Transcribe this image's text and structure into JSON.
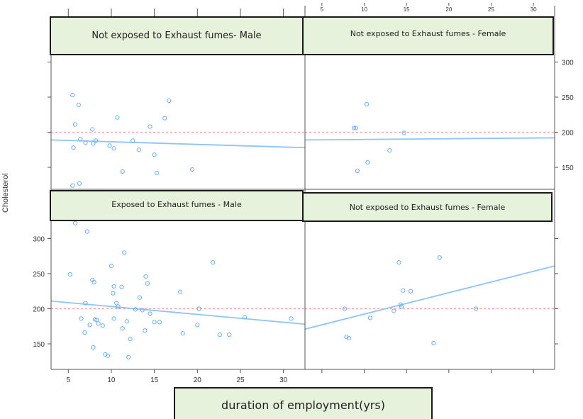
{
  "chart_data": {
    "type": "scatter",
    "ylabel": "Cholesterol",
    "xlabel": "duration of employment(yrs)",
    "x_ticks": [
      5,
      10,
      15,
      20,
      25,
      30
    ],
    "y_ticks": [
      150,
      200,
      250,
      300
    ],
    "xlim": [
      3,
      32.5
    ],
    "ylim": [
      116,
      324
    ],
    "reference_line_y": 200,
    "colors": {
      "points": "#6aaeff",
      "fit": "#8cc4ff",
      "reference": "#ff9a9a",
      "frame": "#555555",
      "label_fill": "#e6f2dc"
    },
    "panels": [
      {
        "title": "Not exposed to Exhaust fumes- Male",
        "points": [
          [
            5.5,
            253
          ],
          [
            6.2,
            239
          ],
          [
            5.8,
            211
          ],
          [
            6.4,
            190
          ],
          [
            5.6,
            178
          ],
          [
            5.5,
            124
          ],
          [
            6.3,
            127
          ],
          [
            7.0,
            185
          ],
          [
            7.8,
            204
          ],
          [
            8.2,
            188
          ],
          [
            7.9,
            184
          ],
          [
            9.8,
            181
          ],
          [
            10.3,
            177
          ],
          [
            10.7,
            221
          ],
          [
            11.3,
            144
          ],
          [
            12.5,
            188
          ],
          [
            13.2,
            175
          ],
          [
            14.5,
            208
          ],
          [
            15.0,
            168
          ],
          [
            16.2,
            220
          ],
          [
            16.7,
            245
          ],
          [
            15.3,
            142
          ],
          [
            19.4,
            147
          ]
        ],
        "fit": [
          [
            3.0,
            189
          ],
          [
            32.5,
            178
          ]
        ]
      },
      {
        "title": "Not exposed to Exhaust fumes - Female",
        "points": [
          [
            8.8,
            206
          ],
          [
            9.0,
            206
          ],
          [
            9.2,
            145
          ],
          [
            10.3,
            240
          ],
          [
            10.4,
            157
          ],
          [
            13.0,
            174
          ],
          [
            14.7,
            199
          ]
        ],
        "fit": [
          [
            3.0,
            189
          ],
          [
            32.5,
            192
          ]
        ]
      },
      {
        "title": "Exposed to Exhaust fumes - Male",
        "points": [
          [
            5.2,
            249
          ],
          [
            5.8,
            322
          ],
          [
            7.2,
            310
          ],
          [
            7.0,
            208
          ],
          [
            6.5,
            186
          ],
          [
            7.5,
            177
          ],
          [
            6.9,
            166
          ],
          [
            7.8,
            241
          ],
          [
            8.0,
            238
          ],
          [
            8.1,
            185
          ],
          [
            8.3,
            184
          ],
          [
            8.5,
            179
          ],
          [
            9.0,
            176
          ],
          [
            7.9,
            145
          ],
          [
            9.3,
            135
          ],
          [
            9.6,
            133
          ],
          [
            10.0,
            261
          ],
          [
            10.3,
            232
          ],
          [
            10.2,
            222
          ],
          [
            10.6,
            208
          ],
          [
            10.8,
            203
          ],
          [
            10.3,
            186
          ],
          [
            11.2,
            231
          ],
          [
            11.5,
            280
          ],
          [
            11.8,
            182
          ],
          [
            11.3,
            172
          ],
          [
            12.2,
            157
          ],
          [
            12.0,
            131
          ],
          [
            12.8,
            199
          ],
          [
            13.3,
            216
          ],
          [
            13.6,
            198
          ],
          [
            14.0,
            246
          ],
          [
            14.2,
            236
          ],
          [
            14.5,
            193
          ],
          [
            13.9,
            169
          ],
          [
            15.0,
            181
          ],
          [
            15.6,
            181
          ],
          [
            18.0,
            224
          ],
          [
            18.3,
            165
          ],
          [
            20.0,
            177
          ],
          [
            20.2,
            200
          ],
          [
            21.8,
            266
          ],
          [
            22.6,
            163
          ],
          [
            23.7,
            163
          ],
          [
            25.5,
            188
          ],
          [
            30.9,
            186
          ]
        ],
        "fit": [
          [
            3.0,
            211
          ],
          [
            32.5,
            178
          ]
        ]
      },
      {
        "title": "Not exposed to Exhaust fumes - Female",
        "points": [
          [
            7.7,
            200
          ],
          [
            7.9,
            160
          ],
          [
            8.2,
            158
          ],
          [
            13.5,
            197
          ],
          [
            14.3,
            206
          ],
          [
            14.4,
            203
          ],
          [
            14.1,
            266
          ],
          [
            14.6,
            226
          ],
          [
            15.5,
            225
          ],
          [
            18.2,
            151
          ],
          [
            18.9,
            273
          ],
          [
            23.2,
            200
          ],
          [
            10.7,
            187
          ]
        ],
        "fit": [
          [
            3.0,
            171
          ],
          [
            32.5,
            261
          ]
        ]
      }
    ]
  }
}
